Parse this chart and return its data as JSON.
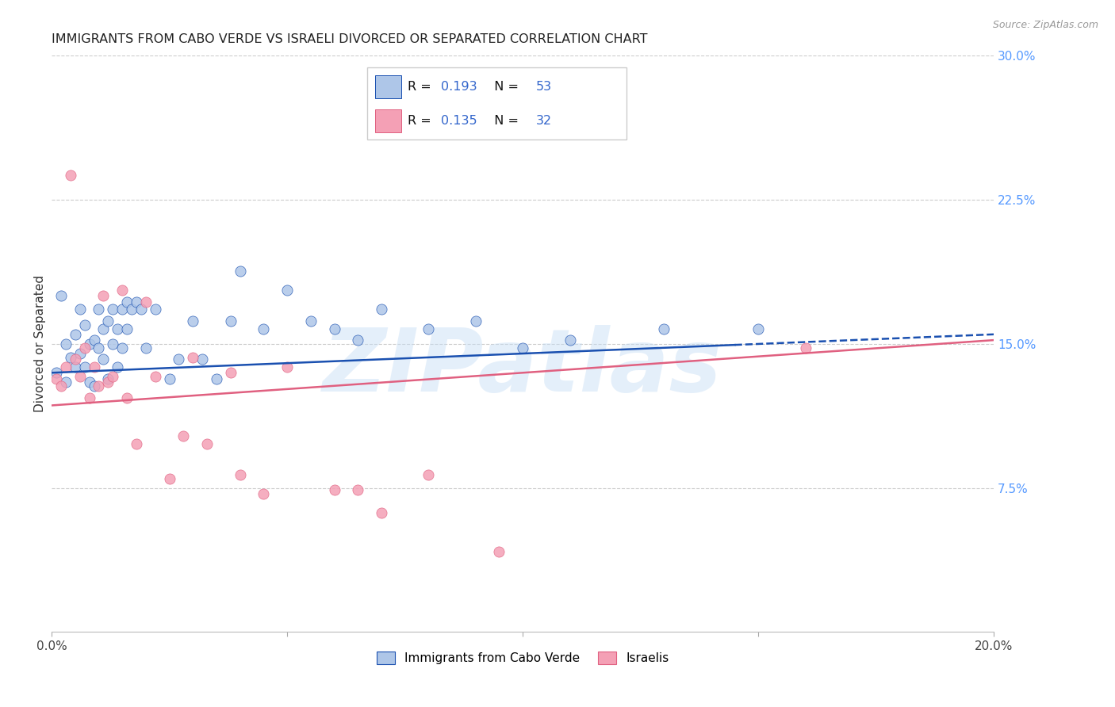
{
  "title": "IMMIGRANTS FROM CABO VERDE VS ISRAELI DIVORCED OR SEPARATED CORRELATION CHART",
  "source": "Source: ZipAtlas.com",
  "ylabel": "Divorced or Separated",
  "xlim": [
    0.0,
    0.2
  ],
  "ylim": [
    0.0,
    0.3
  ],
  "xticks": [
    0.0,
    0.05,
    0.1,
    0.15,
    0.2
  ],
  "xticklabels": [
    "0.0%",
    "",
    "",
    "",
    "20.0%"
  ],
  "yticks_right": [
    0.075,
    0.15,
    0.225,
    0.3
  ],
  "ytick_labels_right": [
    "7.5%",
    "15.0%",
    "22.5%",
    "30.0%"
  ],
  "blue_R": 0.193,
  "blue_N": 53,
  "pink_R": 0.135,
  "pink_N": 32,
  "blue_color": "#aec6e8",
  "pink_color": "#f4a0b5",
  "blue_line_color": "#1a50b0",
  "pink_line_color": "#e06080",
  "legend_label_blue": "Immigrants from Cabo Verde",
  "legend_label_pink": "Israelis",
  "watermark": "ZIPatlas",
  "grid_color": "#cccccc",
  "title_color": "#222222",
  "right_axis_color": "#5599ff",
  "legend_text_color": "#111111",
  "legend_num_color": "#3366cc",
  "blue_scatter_x": [
    0.001,
    0.002,
    0.003,
    0.003,
    0.004,
    0.005,
    0.005,
    0.006,
    0.006,
    0.007,
    0.007,
    0.008,
    0.008,
    0.009,
    0.009,
    0.01,
    0.01,
    0.011,
    0.011,
    0.012,
    0.012,
    0.013,
    0.013,
    0.014,
    0.014,
    0.015,
    0.015,
    0.016,
    0.016,
    0.017,
    0.018,
    0.019,
    0.02,
    0.022,
    0.025,
    0.027,
    0.03,
    0.032,
    0.035,
    0.038,
    0.04,
    0.045,
    0.05,
    0.055,
    0.06,
    0.065,
    0.07,
    0.08,
    0.09,
    0.1,
    0.11,
    0.13,
    0.15
  ],
  "blue_scatter_y": [
    0.135,
    0.175,
    0.13,
    0.15,
    0.143,
    0.155,
    0.138,
    0.145,
    0.168,
    0.138,
    0.16,
    0.13,
    0.15,
    0.128,
    0.152,
    0.148,
    0.168,
    0.142,
    0.158,
    0.132,
    0.162,
    0.15,
    0.168,
    0.138,
    0.158,
    0.168,
    0.148,
    0.172,
    0.158,
    0.168,
    0.172,
    0.168,
    0.148,
    0.168,
    0.132,
    0.142,
    0.162,
    0.142,
    0.132,
    0.162,
    0.188,
    0.158,
    0.178,
    0.162,
    0.158,
    0.152,
    0.168,
    0.158,
    0.162,
    0.148,
    0.152,
    0.158,
    0.158
  ],
  "pink_scatter_x": [
    0.001,
    0.002,
    0.003,
    0.004,
    0.005,
    0.006,
    0.007,
    0.008,
    0.009,
    0.01,
    0.011,
    0.012,
    0.013,
    0.015,
    0.016,
    0.018,
    0.02,
    0.022,
    0.025,
    0.028,
    0.03,
    0.033,
    0.038,
    0.04,
    0.045,
    0.05,
    0.06,
    0.065,
    0.07,
    0.08,
    0.095,
    0.16
  ],
  "pink_scatter_y": [
    0.132,
    0.128,
    0.138,
    0.238,
    0.142,
    0.133,
    0.148,
    0.122,
    0.138,
    0.128,
    0.175,
    0.13,
    0.133,
    0.178,
    0.122,
    0.098,
    0.172,
    0.133,
    0.08,
    0.102,
    0.143,
    0.098,
    0.135,
    0.082,
    0.072,
    0.138,
    0.074,
    0.074,
    0.062,
    0.082,
    0.042,
    0.148
  ],
  "blue_line_start_x": 0.0,
  "blue_line_end_x": 0.2,
  "blue_line_solid_end_x": 0.145,
  "blue_line_start_y": 0.135,
  "blue_line_end_y": 0.155,
  "pink_line_start_x": 0.0,
  "pink_line_end_x": 0.2,
  "pink_line_start_y": 0.118,
  "pink_line_end_y": 0.152
}
